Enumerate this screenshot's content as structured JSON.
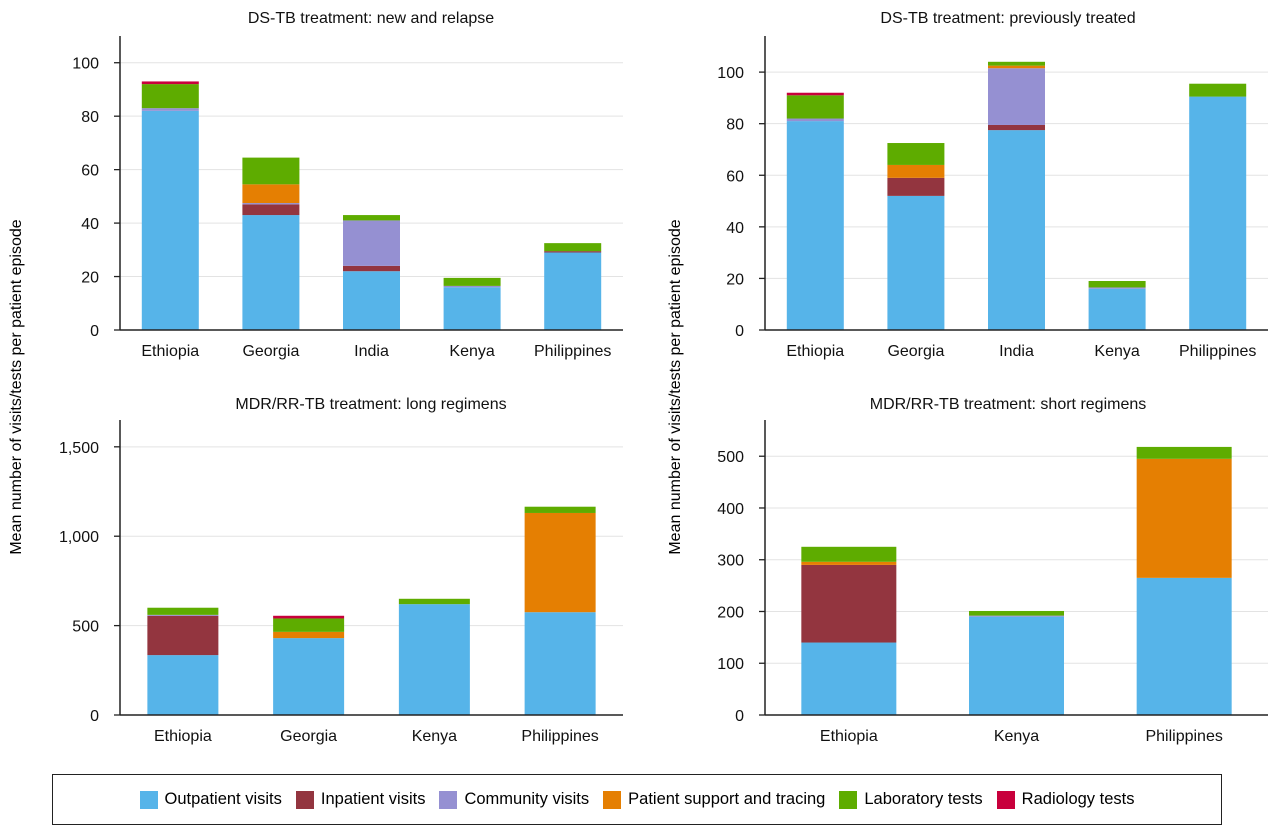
{
  "y_axis_label": "Mean number of visits/tests per patient episode",
  "colors": {
    "Outpatient visits": "#56b4e9",
    "Inpatient visits": "#93353f",
    "Community visits": "#9590d2",
    "Patient support and tracing": "#e57f02",
    "Laboratory tests": "#5eac00",
    "Radiology tests": "#c8003c"
  },
  "legend": {
    "items": [
      {
        "label": "Outpatient visits",
        "color": "#56b4e9"
      },
      {
        "label": "Inpatient visits",
        "color": "#93353f"
      },
      {
        "label": "Community visits",
        "color": "#9590d2"
      },
      {
        "label": "Patient support and tracing",
        "color": "#e57f02"
      },
      {
        "label": "Laboratory tests",
        "color": "#5eac00"
      },
      {
        "label": "Radiology tests",
        "color": "#c8003c"
      }
    ]
  },
  "chart_data": [
    {
      "type": "bar",
      "stacked": true,
      "title": "DS-TB treatment: new and relapse",
      "categories": [
        "Ethiopia",
        "Georgia",
        "India",
        "Kenya",
        "Philippines"
      ],
      "ylim": [
        0,
        110
      ],
      "yticks": [
        0,
        20,
        40,
        60,
        80,
        100
      ],
      "ytick_labels": [
        "0",
        "20",
        "40",
        "60",
        "80",
        "100"
      ],
      "grid": true,
      "series": [
        {
          "name": "Outpatient visits",
          "values": [
            82,
            43,
            22,
            16,
            29
          ]
        },
        {
          "name": "Inpatient visits",
          "values": [
            0,
            4,
            2,
            0,
            0.5
          ]
        },
        {
          "name": "Community visits",
          "values": [
            1,
            0.5,
            17,
            0.5,
            0
          ]
        },
        {
          "name": "Patient support and tracing",
          "values": [
            0,
            7,
            0,
            0,
            0
          ]
        },
        {
          "name": "Laboratory tests",
          "values": [
            9,
            10,
            2,
            3,
            3
          ]
        },
        {
          "name": "Radiology tests",
          "values": [
            1,
            0,
            0,
            0,
            0
          ]
        }
      ]
    },
    {
      "type": "bar",
      "stacked": true,
      "title": "DS-TB treatment: previously treated",
      "categories": [
        "Ethiopia",
        "Georgia",
        "India",
        "Kenya",
        "Philippines"
      ],
      "ylim": [
        0,
        114
      ],
      "yticks": [
        0,
        20,
        40,
        60,
        80,
        100
      ],
      "ytick_labels": [
        "0",
        "20",
        "40",
        "60",
        "80",
        "100"
      ],
      "grid": true,
      "series": [
        {
          "name": "Outpatient visits",
          "values": [
            81,
            52,
            77.5,
            16,
            90.5
          ]
        },
        {
          "name": "Inpatient visits",
          "values": [
            0,
            7,
            2,
            0,
            0
          ]
        },
        {
          "name": "Community visits",
          "values": [
            1,
            0,
            22,
            0.5,
            0
          ]
        },
        {
          "name": "Patient support and tracing",
          "values": [
            0,
            5,
            1,
            0,
            0
          ]
        },
        {
          "name": "Laboratory tests",
          "values": [
            9,
            8.5,
            1.5,
            2.5,
            5
          ]
        },
        {
          "name": "Radiology tests",
          "values": [
            1,
            0,
            0,
            0,
            0
          ]
        }
      ]
    },
    {
      "type": "bar",
      "stacked": true,
      "title": "MDR/RR-TB treatment: long regimens",
      "categories": [
        "Ethiopia",
        "Georgia",
        "Kenya",
        "Philippines"
      ],
      "ylim": [
        0,
        1650
      ],
      "yticks": [
        0,
        500,
        1000,
        1500
      ],
      "ytick_labels": [
        "0",
        "500",
        "1,000",
        "1,500"
      ],
      "grid": true,
      "series": [
        {
          "name": "Outpatient visits",
          "values": [
            335,
            430,
            620,
            575
          ]
        },
        {
          "name": "Inpatient visits",
          "values": [
            220,
            0,
            0,
            0
          ]
        },
        {
          "name": "Community visits",
          "values": [
            5,
            0,
            0,
            0
          ]
        },
        {
          "name": "Patient support and tracing",
          "values": [
            0,
            35,
            0,
            555
          ]
        },
        {
          "name": "Laboratory tests",
          "values": [
            40,
            75,
            30,
            35
          ]
        },
        {
          "name": "Radiology tests",
          "values": [
            0,
            15,
            0,
            0
          ]
        }
      ]
    },
    {
      "type": "bar",
      "stacked": true,
      "title": "MDR/RR-TB treatment: short regimens",
      "categories": [
        "Ethiopia",
        "Kenya",
        "Philippines"
      ],
      "ylim": [
        0,
        570
      ],
      "yticks": [
        0,
        100,
        200,
        300,
        400,
        500
      ],
      "ytick_labels": [
        "0",
        "100",
        "200",
        "300",
        "400",
        "500"
      ],
      "grid": true,
      "series": [
        {
          "name": "Outpatient visits",
          "values": [
            140,
            190,
            265
          ]
        },
        {
          "name": "Inpatient visits",
          "values": [
            150,
            0,
            0
          ]
        },
        {
          "name": "Community visits",
          "values": [
            0,
            2,
            0
          ]
        },
        {
          "name": "Patient support and tracing",
          "values": [
            6,
            0,
            230
          ]
        },
        {
          "name": "Laboratory tests",
          "values": [
            29,
            9,
            23
          ]
        },
        {
          "name": "Radiology tests",
          "values": [
            0,
            0,
            0
          ]
        }
      ]
    }
  ]
}
